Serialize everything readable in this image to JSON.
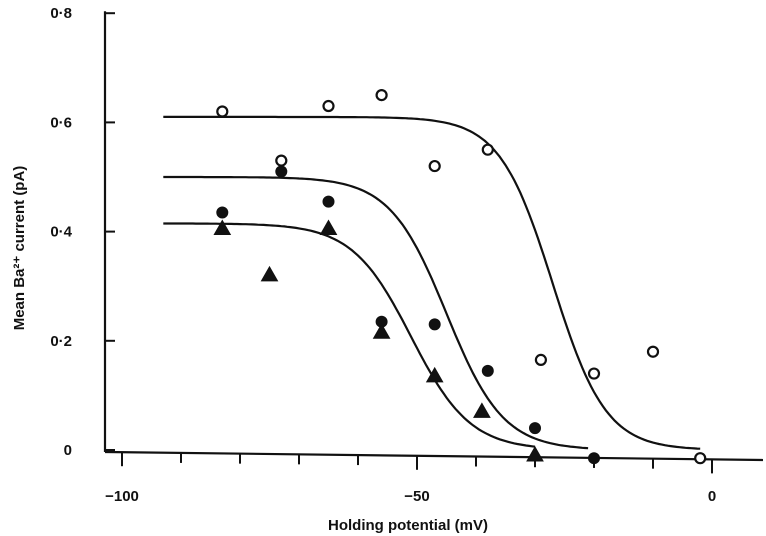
{
  "chart_data": {
    "type": "scatter",
    "xlabel": "Holding potential (mV)",
    "ylabel": "Mean Ba²⁺ current (pA)",
    "xlim": [
      -103,
      4
    ],
    "ylim": [
      0,
      0.8
    ],
    "x_ticks": [
      -100,
      -50,
      0
    ],
    "x_tick_labels": [
      "−100",
      "−50",
      "0"
    ],
    "y_ticks": [
      0,
      0.2,
      0.4,
      0.6,
      0.8
    ],
    "y_tick_labels": [
      "0",
      "0·2",
      "0·4",
      "0·6",
      "0·8"
    ],
    "x_minor_step": 10,
    "grid": false,
    "series": [
      {
        "marker": "open-circle",
        "x": [
          -83,
          -73,
          -65,
          -56,
          -47,
          -38,
          -29,
          -20,
          -10,
          -2
        ],
        "y": [
          0.62,
          0.53,
          0.63,
          0.65,
          0.52,
          0.55,
          0.165,
          0.14,
          0.18,
          -0.015
        ],
        "fit": {
          "type": "boltzmann",
          "max": 0.61,
          "v_half": -27,
          "k": 4.5
        }
      },
      {
        "marker": "filled-circle",
        "x": [
          -83,
          -73,
          -65,
          -56,
          -47,
          -38,
          -30,
          -20
        ],
        "y": [
          0.435,
          0.51,
          0.455,
          0.235,
          0.23,
          0.145,
          0.04,
          -0.015
        ],
        "fit": {
          "type": "boltzmann",
          "max": 0.5,
          "v_half": -45,
          "k": 4.8
        }
      },
      {
        "marker": "filled-triangle",
        "x": [
          -83,
          -75,
          -65,
          -56,
          -47,
          -39,
          -30
        ],
        "y": [
          0.405,
          0.32,
          0.405,
          0.215,
          0.135,
          0.07,
          -0.01
        ],
        "fit": {
          "type": "boltzmann",
          "max": 0.415,
          "v_half": -51,
          "k": 5.0
        }
      }
    ]
  }
}
